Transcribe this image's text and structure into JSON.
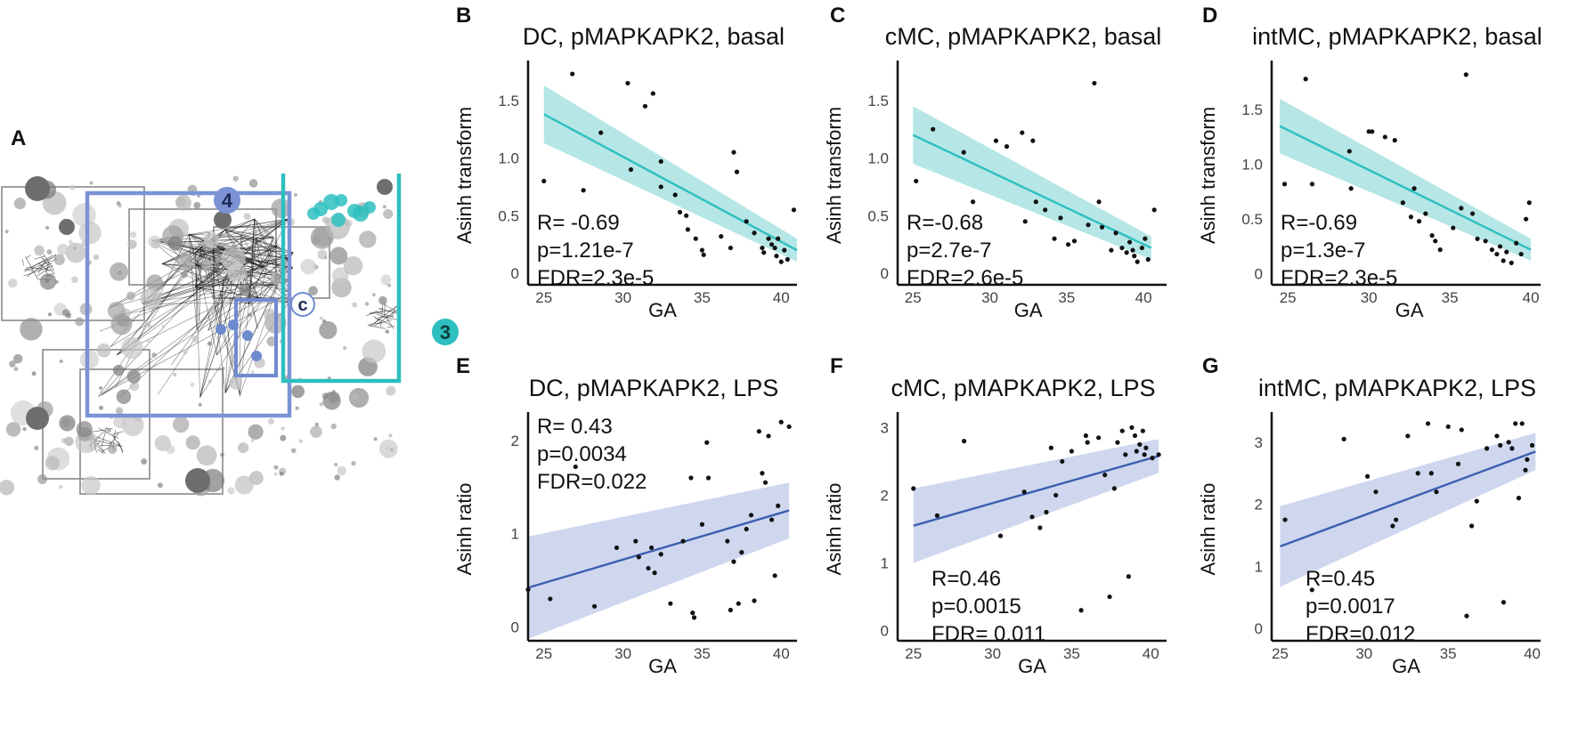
{
  "panel_labels": {
    "A": "A",
    "B": "B",
    "C": "C",
    "D": "D",
    "E": "E",
    "F": "F",
    "G": "G"
  },
  "panel_a": {
    "module_labels": {
      "m4": "4",
      "m3": "3",
      "mc": "c"
    },
    "colors": {
      "module4": "#7b93d4",
      "module3": "#2ebfbf",
      "module_c": "#6f8bd0",
      "box": "#888888",
      "node": "#8a8a8a",
      "edge": "#111111"
    }
  },
  "chart_data": [
    {
      "id": "B",
      "type": "scatter",
      "title": "DC, pMAPKAPK2, basal",
      "xlabel": "GA",
      "ylabel": "Asinh transform",
      "xlim": [
        24,
        41
      ],
      "ylim": [
        -0.1,
        1.8
      ],
      "xticks": [
        25,
        30,
        35,
        40
      ],
      "yticks": [
        0,
        0.5,
        1.0,
        1.5
      ],
      "ytick_labels": [
        "0",
        "0.5",
        "1.0",
        "1.5"
      ],
      "fit": {
        "x0": 25,
        "y0": 1.38,
        "x1": 41,
        "y1": 0.2,
        "band0": 0.25,
        "band1": 0.1,
        "color": "#2ebfbf",
        "band": "#a9e2e2"
      },
      "stats": [
        "R= -0.69",
        "p=1.21e-7",
        "FDR=2.3e-5"
      ],
      "stats_pos": "bottom-left",
      "points": [
        [
          25.0,
          0.8
        ],
        [
          26.8,
          1.73
        ],
        [
          27.5,
          0.72
        ],
        [
          28.6,
          1.22
        ],
        [
          30.3,
          1.65
        ],
        [
          30.5,
          0.9
        ],
        [
          31.4,
          1.45
        ],
        [
          31.9,
          1.56
        ],
        [
          32.4,
          0.97
        ],
        [
          32.4,
          0.75
        ],
        [
          33.3,
          0.68
        ],
        [
          33.6,
          0.53
        ],
        [
          34.0,
          0.5
        ],
        [
          34.1,
          0.38
        ],
        [
          34.6,
          0.3
        ],
        [
          35.0,
          0.2
        ],
        [
          35.1,
          0.16
        ],
        [
          36.2,
          0.32
        ],
        [
          36.8,
          0.22
        ],
        [
          37.0,
          1.05
        ],
        [
          37.2,
          0.88
        ],
        [
          37.8,
          0.45
        ],
        [
          38.3,
          0.35
        ],
        [
          38.8,
          0.22
        ],
        [
          38.9,
          0.18
        ],
        [
          39.2,
          0.3
        ],
        [
          39.4,
          0.25
        ],
        [
          39.6,
          0.22
        ],
        [
          39.8,
          0.3
        ],
        [
          39.7,
          0.15
        ],
        [
          40.0,
          0.1
        ],
        [
          40.2,
          0.2
        ],
        [
          40.4,
          0.12
        ],
        [
          40.8,
          0.55
        ]
      ]
    },
    {
      "id": "C",
      "type": "scatter",
      "title": "cMC, pMAPKAPK2, basal",
      "xlabel": "GA",
      "ylabel": "Asinh transform",
      "xlim": [
        24,
        41.5
      ],
      "ylim": [
        -0.1,
        1.8
      ],
      "xticks": [
        25,
        30,
        35,
        40
      ],
      "yticks": [
        0,
        0.5,
        1.0,
        1.5
      ],
      "ytick_labels": [
        "0",
        "0.5",
        "1.0",
        "1.5"
      ],
      "fit": {
        "x0": 25,
        "y0": 1.2,
        "x1": 40.5,
        "y1": 0.22,
        "band0": 0.25,
        "band1": 0.1,
        "color": "#2ebfbf",
        "band": "#a9e2e2"
      },
      "stats": [
        "R=-0.68",
        "p=2.7e-7",
        "FDR=2.6e-5"
      ],
      "stats_pos": "bottom-left",
      "points": [
        [
          25.2,
          0.8
        ],
        [
          26.3,
          1.25
        ],
        [
          28.3,
          1.05
        ],
        [
          28.9,
          0.62
        ],
        [
          30.4,
          1.15
        ],
        [
          31.1,
          1.1
        ],
        [
          32.1,
          1.22
        ],
        [
          32.3,
          0.45
        ],
        [
          32.8,
          1.15
        ],
        [
          33.0,
          0.62
        ],
        [
          33.6,
          0.55
        ],
        [
          34.2,
          0.3
        ],
        [
          34.6,
          0.48
        ],
        [
          35.1,
          0.25
        ],
        [
          35.5,
          0.28
        ],
        [
          36.4,
          0.42
        ],
        [
          36.8,
          1.65
        ],
        [
          37.1,
          0.62
        ],
        [
          37.3,
          0.4
        ],
        [
          37.9,
          0.2
        ],
        [
          38.2,
          0.35
        ],
        [
          38.6,
          0.22
        ],
        [
          38.9,
          0.18
        ],
        [
          39.1,
          0.27
        ],
        [
          39.3,
          0.2
        ],
        [
          39.4,
          0.15
        ],
        [
          39.6,
          0.1
        ],
        [
          39.9,
          0.22
        ],
        [
          40.1,
          0.3
        ],
        [
          40.3,
          0.12
        ],
        [
          40.7,
          0.55
        ]
      ]
    },
    {
      "id": "D",
      "type": "scatter",
      "title": "intMC, pMAPKAPK2, basal",
      "xlabel": "GA",
      "ylabel": "Asinh transform",
      "xlim": [
        24,
        40.6
      ],
      "ylim": [
        -0.1,
        1.9
      ],
      "xticks": [
        25,
        30,
        35,
        40
      ],
      "yticks": [
        0,
        0.5,
        1.0,
        1.5
      ],
      "ytick_labels": [
        "0",
        "0.5",
        "1.0",
        "1.5"
      ],
      "fit": {
        "x0": 24.5,
        "y0": 1.35,
        "x1": 40,
        "y1": 0.22,
        "band0": 0.25,
        "band1": 0.1,
        "color": "#2ebfbf",
        "band": "#a9e2e2"
      },
      "stats": [
        "R=-0.69",
        "p=1.3e-7",
        "FDR=2.3e-5"
      ],
      "stats_pos": "bottom-left",
      "points": [
        [
          24.8,
          0.82
        ],
        [
          26.1,
          1.78
        ],
        [
          26.5,
          0.82
        ],
        [
          28.8,
          1.12
        ],
        [
          28.9,
          0.78
        ],
        [
          30.0,
          1.3
        ],
        [
          30.2,
          1.3
        ],
        [
          31.0,
          1.25
        ],
        [
          31.6,
          1.22
        ],
        [
          32.1,
          0.65
        ],
        [
          32.6,
          0.52
        ],
        [
          32.8,
          0.78
        ],
        [
          33.1,
          0.48
        ],
        [
          33.5,
          0.55
        ],
        [
          33.9,
          0.35
        ],
        [
          34.1,
          0.3
        ],
        [
          34.4,
          0.22
        ],
        [
          35.2,
          0.42
        ],
        [
          35.7,
          0.6
        ],
        [
          36.0,
          1.82
        ],
        [
          36.4,
          0.55
        ],
        [
          36.7,
          0.32
        ],
        [
          37.2,
          0.3
        ],
        [
          37.6,
          0.22
        ],
        [
          37.9,
          0.18
        ],
        [
          38.1,
          0.25
        ],
        [
          38.3,
          0.12
        ],
        [
          38.5,
          0.2
        ],
        [
          38.8,
          0.1
        ],
        [
          39.1,
          0.28
        ],
        [
          39.4,
          0.18
        ],
        [
          39.7,
          0.5
        ],
        [
          39.9,
          0.65
        ]
      ]
    },
    {
      "id": "E",
      "type": "scatter",
      "title": "DC, pMAPKAPK2, LPS",
      "xlabel": "GA",
      "ylabel": "Asinh ratio",
      "xlim": [
        24,
        41
      ],
      "ylim": [
        -0.15,
        2.25
      ],
      "xticks": [
        25,
        30,
        35,
        40
      ],
      "yticks": [
        0,
        1,
        2
      ],
      "ytick_labels": [
        "0",
        "1",
        "2"
      ],
      "fit": {
        "x0": 24,
        "y0": 0.42,
        "x1": 40.5,
        "y1": 1.25,
        "band0": 0.55,
        "band1": 0.3,
        "color": "#3d5fb0",
        "band": "#c7d0ec"
      },
      "stats": [
        "R= 0.43",
        "p=0.0034",
        "FDR=0.022"
      ],
      "stats_pos": "top-left",
      "points": [
        [
          24.0,
          0.4
        ],
        [
          25.4,
          0.3
        ],
        [
          27.0,
          1.72
        ],
        [
          28.2,
          0.22
        ],
        [
          29.6,
          0.85
        ],
        [
          30.8,
          0.92
        ],
        [
          31.0,
          0.75
        ],
        [
          31.6,
          0.63
        ],
        [
          31.8,
          0.85
        ],
        [
          32.0,
          0.58
        ],
        [
          32.4,
          0.78
        ],
        [
          33.0,
          0.25
        ],
        [
          33.8,
          0.92
        ],
        [
          34.3,
          1.6
        ],
        [
          34.4,
          0.15
        ],
        [
          34.5,
          0.1
        ],
        [
          35.0,
          1.1
        ],
        [
          35.3,
          1.98
        ],
        [
          35.4,
          1.6
        ],
        [
          36.6,
          0.92
        ],
        [
          36.8,
          0.18
        ],
        [
          37.0,
          0.7
        ],
        [
          37.3,
          0.25
        ],
        [
          37.5,
          0.8
        ],
        [
          37.8,
          1.05
        ],
        [
          38.1,
          1.2
        ],
        [
          38.3,
          0.28
        ],
        [
          38.6,
          2.1
        ],
        [
          38.8,
          1.65
        ],
        [
          39.0,
          1.55
        ],
        [
          39.2,
          2.05
        ],
        [
          39.4,
          1.15
        ],
        [
          39.6,
          0.55
        ],
        [
          39.8,
          1.3
        ],
        [
          40.0,
          2.2
        ],
        [
          40.5,
          2.15
        ]
      ]
    },
    {
      "id": "F",
      "type": "scatter",
      "title": "cMC, pMAPKAPK2, LPS",
      "xlabel": "GA",
      "ylabel": "Asinh ratio",
      "xlim": [
        24,
        41
      ],
      "ylim": [
        -0.15,
        3.15
      ],
      "xticks": [
        25,
        30,
        35,
        40
      ],
      "yticks": [
        0,
        1,
        2,
        3
      ],
      "ytick_labels": [
        "0",
        "1",
        "2",
        "3"
      ],
      "fit": {
        "x0": 25,
        "y0": 1.55,
        "x1": 40.5,
        "y1": 2.58,
        "band0": 0.55,
        "band1": 0.25,
        "color": "#3d5fb0",
        "band": "#c7d0ec"
      },
      "stats": [
        "R=0.46",
        "p=0.0015",
        "FDR= 0.011"
      ],
      "stats_pos": "bottom-center",
      "points": [
        [
          25.0,
          2.1
        ],
        [
          26.5,
          1.7
        ],
        [
          28.2,
          2.8
        ],
        [
          30.5,
          1.4
        ],
        [
          32.0,
          2.05
        ],
        [
          32.5,
          1.68
        ],
        [
          33.0,
          1.52
        ],
        [
          33.4,
          1.75
        ],
        [
          33.7,
          2.7
        ],
        [
          34.0,
          2.0
        ],
        [
          34.4,
          2.5
        ],
        [
          35.0,
          2.65
        ],
        [
          35.6,
          0.3
        ],
        [
          35.9,
          2.88
        ],
        [
          36.0,
          2.78
        ],
        [
          36.7,
          2.85
        ],
        [
          37.1,
          2.3
        ],
        [
          37.4,
          0.5
        ],
        [
          37.7,
          2.1
        ],
        [
          37.9,
          2.78
        ],
        [
          38.2,
          2.95
        ],
        [
          38.4,
          2.6
        ],
        [
          38.6,
          0.8
        ],
        [
          38.8,
          3.0
        ],
        [
          39.0,
          2.88
        ],
        [
          39.1,
          2.65
        ],
        [
          39.3,
          2.75
        ],
        [
          39.5,
          2.95
        ],
        [
          39.6,
          2.6
        ],
        [
          39.7,
          2.7
        ],
        [
          40.1,
          2.55
        ],
        [
          40.5,
          2.6
        ]
      ]
    },
    {
      "id": "G",
      "type": "scatter",
      "title": "intMC, pMAPKAPK2, LPS",
      "xlabel": "GA",
      "ylabel": "Asinh ratio",
      "xlim": [
        24.5,
        40.5
      ],
      "ylim": [
        -0.2,
        3.4
      ],
      "xticks": [
        25,
        30,
        35,
        40
      ],
      "yticks": [
        0,
        1,
        2,
        3
      ],
      "ytick_labels": [
        "0",
        "1",
        "2",
        "3"
      ],
      "fit": {
        "x0": 25,
        "y0": 1.32,
        "x1": 40.2,
        "y1": 2.85,
        "band0": 0.65,
        "band1": 0.3,
        "color": "#3d5fb0",
        "band": "#c7d0ec"
      },
      "stats": [
        "R=0.45",
        "p=0.0017",
        "FDR=0.012"
      ],
      "stats_pos": "bottom-center",
      "points": [
        [
          25.3,
          1.75
        ],
        [
          26.9,
          0.62
        ],
        [
          28.8,
          3.05
        ],
        [
          30.2,
          2.45
        ],
        [
          30.7,
          2.2
        ],
        [
          31.7,
          1.65
        ],
        [
          31.9,
          1.75
        ],
        [
          32.6,
          3.1
        ],
        [
          33.2,
          2.5
        ],
        [
          33.8,
          3.3
        ],
        [
          34.0,
          2.5
        ],
        [
          34.3,
          2.2
        ],
        [
          35.0,
          3.25
        ],
        [
          35.6,
          2.65
        ],
        [
          35.8,
          3.2
        ],
        [
          36.1,
          0.2
        ],
        [
          36.4,
          1.65
        ],
        [
          36.7,
          2.05
        ],
        [
          37.3,
          2.9
        ],
        [
          37.9,
          3.1
        ],
        [
          38.1,
          2.95
        ],
        [
          38.3,
          0.42
        ],
        [
          38.6,
          3.0
        ],
        [
          38.8,
          2.9
        ],
        [
          39.0,
          3.3
        ],
        [
          39.2,
          2.1
        ],
        [
          39.4,
          3.3
        ],
        [
          39.6,
          2.55
        ],
        [
          39.7,
          2.72
        ],
        [
          40.0,
          2.95
        ]
      ]
    }
  ]
}
